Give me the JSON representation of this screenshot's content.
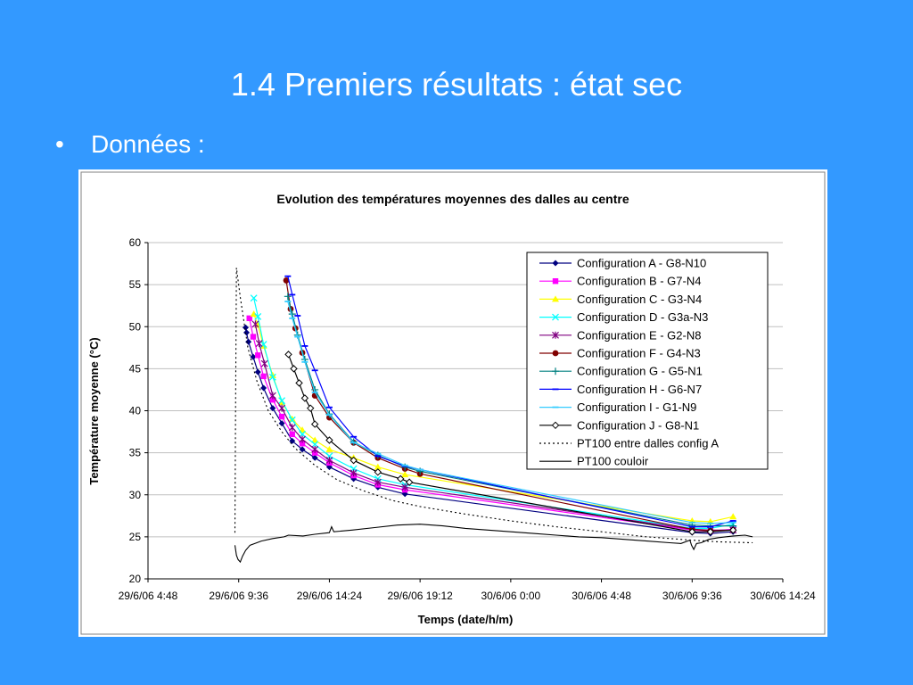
{
  "slide": {
    "title": "1.4 Premiers résultats : état sec",
    "bullet_symbol": "•",
    "bullet_text": "Données :"
  },
  "chart_data": {
    "type": "line",
    "title": "Evolution des températures moyennes des dalles au centre",
    "xlabel": "Temps (date/h/m)",
    "ylabel": "Température moyenne (°C)",
    "x_is_datetime": true,
    "xlim": [
      "2006-06-29 04:48",
      "2006-06-30 14:24"
    ],
    "x_ticks": [
      {
        "value": "2006-06-29 04:48",
        "label": "29/6/06 4:48"
      },
      {
        "value": "2006-06-29 09:36",
        "label": "29/6/06 9:36"
      },
      {
        "value": "2006-06-29 14:24",
        "label": "29/6/06 14:24"
      },
      {
        "value": "2006-06-29 19:12",
        "label": "29/6/06 19:12"
      },
      {
        "value": "2006-06-30 00:00",
        "label": "30/6/06 0:00"
      },
      {
        "value": "2006-06-30 04:48",
        "label": "30/6/06 4:48"
      },
      {
        "value": "2006-06-30 09:36",
        "label": "30/6/06 9:36"
      },
      {
        "value": "2006-06-30 14:24",
        "label": "30/6/06 14:24"
      }
    ],
    "ylim": [
      20,
      60
    ],
    "y_ticks": [
      20,
      25,
      30,
      35,
      40,
      45,
      50,
      55,
      60
    ],
    "grid": "horizontal",
    "legend_position": "top-right",
    "series": [
      {
        "name": "Configuration A - G8-N10",
        "color": "#000080",
        "marker": "diamond",
        "points": [
          [
            "2006-06-29 09:58",
            49.9
          ],
          [
            "2006-06-29 10:01",
            49.3
          ],
          [
            "2006-06-29 10:07",
            48.2
          ],
          [
            "2006-06-29 10:22",
            46.4
          ],
          [
            "2006-06-29 10:37",
            44.6
          ],
          [
            "2006-06-29 10:55",
            42.7
          ],
          [
            "2006-06-29 11:24",
            40.3
          ],
          [
            "2006-06-29 11:53",
            38.5
          ],
          [
            "2006-06-29 12:26",
            36.4
          ],
          [
            "2006-06-29 12:58",
            35.4
          ],
          [
            "2006-06-29 13:38",
            34.4
          ],
          [
            "2006-06-29 14:24",
            33.3
          ],
          [
            "2006-06-29 15:41",
            31.9
          ],
          [
            "2006-06-29 16:58",
            30.9
          ],
          [
            "2006-06-29 18:24",
            30.1
          ],
          [
            "2006-06-30 09:36",
            25.5
          ],
          [
            "2006-06-30 10:34",
            25.4
          ],
          [
            "2006-06-30 11:46",
            25.6
          ]
        ]
      },
      {
        "name": "Configuration B - G7-N4",
        "color": "#ff00ff",
        "marker": "square",
        "points": [
          [
            "2006-06-29 10:10",
            51.0
          ],
          [
            "2006-06-29 10:22",
            48.8
          ],
          [
            "2006-06-29 10:37",
            46.6
          ],
          [
            "2006-06-29 10:55",
            44.1
          ],
          [
            "2006-06-29 11:24",
            41.3
          ],
          [
            "2006-06-29 11:53",
            39.3
          ],
          [
            "2006-06-29 12:26",
            37.2
          ],
          [
            "2006-06-29 12:58",
            36.1
          ],
          [
            "2006-06-29 13:38",
            35.0
          ],
          [
            "2006-06-29 14:24",
            33.8
          ],
          [
            "2006-06-29 15:41",
            32.3
          ],
          [
            "2006-06-29 16:58",
            31.2
          ],
          [
            "2006-06-29 18:24",
            30.6
          ],
          [
            "2006-06-30 09:36",
            25.8
          ],
          [
            "2006-06-30 10:34",
            25.7
          ],
          [
            "2006-06-30 11:46",
            25.9
          ]
        ]
      },
      {
        "name": "Configuration C - G3-N4",
        "color": "#ffff00",
        "marker": "triangle",
        "points": [
          [
            "2006-06-29 10:24",
            51.5
          ],
          [
            "2006-06-29 10:37",
            50.2
          ],
          [
            "2006-06-29 10:55",
            47.7
          ],
          [
            "2006-06-29 11:24",
            44.2
          ],
          [
            "2006-06-29 11:53",
            41.0
          ],
          [
            "2006-06-29 12:26",
            39.0
          ],
          [
            "2006-06-29 12:58",
            37.7
          ],
          [
            "2006-06-29 13:38",
            36.5
          ],
          [
            "2006-06-29 14:24",
            35.4
          ],
          [
            "2006-06-29 15:41",
            34.4
          ],
          [
            "2006-06-29 16:58",
            33.3
          ],
          [
            "2006-06-29 18:24",
            32.4
          ],
          [
            "2006-06-30 09:36",
            26.9
          ],
          [
            "2006-06-30 10:34",
            26.8
          ],
          [
            "2006-06-30 11:46",
            27.4
          ]
        ]
      },
      {
        "name": "Configuration D - G3a-N3",
        "color": "#00ffff",
        "marker": "x",
        "points": [
          [
            "2006-06-29 10:24",
            53.4
          ],
          [
            "2006-06-29 10:37",
            51.2
          ],
          [
            "2006-06-29 10:55",
            47.9
          ],
          [
            "2006-06-29 11:24",
            44.0
          ],
          [
            "2006-06-29 11:53",
            41.2
          ],
          [
            "2006-06-29 12:26",
            38.9
          ],
          [
            "2006-06-29 12:58",
            37.2
          ],
          [
            "2006-06-29 13:38",
            36.0
          ],
          [
            "2006-06-29 14:24",
            34.6
          ],
          [
            "2006-06-29 15:41",
            33.1
          ],
          [
            "2006-06-29 16:58",
            31.9
          ],
          [
            "2006-06-29 18:24",
            31.2
          ],
          [
            "2006-06-30 09:36",
            26.0
          ],
          [
            "2006-06-30 10:34",
            26.0
          ],
          [
            "2006-06-30 11:46",
            26.5
          ]
        ]
      },
      {
        "name": "Configuration E - G2-N8",
        "color": "#800080",
        "marker": "star",
        "points": [
          [
            "2006-06-29 10:29",
            50.3
          ],
          [
            "2006-06-29 10:41",
            48.0
          ],
          [
            "2006-06-29 10:58",
            45.6
          ],
          [
            "2006-06-29 11:24",
            41.8
          ],
          [
            "2006-06-29 11:53",
            40.3
          ],
          [
            "2006-06-29 12:26",
            38.0
          ],
          [
            "2006-06-29 12:58",
            36.6
          ],
          [
            "2006-06-29 13:38",
            35.4
          ],
          [
            "2006-06-29 14:24",
            34.1
          ],
          [
            "2006-06-29 15:41",
            32.6
          ],
          [
            "2006-06-29 16:58",
            31.5
          ],
          [
            "2006-06-29 18:24",
            30.9
          ],
          [
            "2006-06-30 09:36",
            25.9
          ],
          [
            "2006-06-30 10:34",
            25.8
          ],
          [
            "2006-06-30 11:46",
            25.8
          ]
        ]
      },
      {
        "name": "Configuration F - G4-N3",
        "color": "#800000",
        "marker": "circle",
        "points": [
          [
            "2006-06-29 12:07",
            55.5
          ],
          [
            "2006-06-29 12:21",
            52.1
          ],
          [
            "2006-06-29 12:36",
            49.8
          ],
          [
            "2006-06-29 12:58",
            46.9
          ],
          [
            "2006-06-29 13:38",
            41.8
          ],
          [
            "2006-06-29 14:24",
            39.2
          ],
          [
            "2006-06-29 15:41",
            36.2
          ],
          [
            "2006-06-29 16:58",
            34.4
          ],
          [
            "2006-06-29 18:24",
            33.1
          ],
          [
            "2006-06-29 19:12",
            32.5
          ],
          [
            "2006-06-30 09:36",
            25.9
          ],
          [
            "2006-06-30 10:34",
            25.7
          ],
          [
            "2006-06-30 11:46",
            25.8
          ]
        ]
      },
      {
        "name": "Configuration G - G5-N1",
        "color": "#008080",
        "marker": "plus",
        "points": [
          [
            "2006-06-29 12:12",
            53.6
          ],
          [
            "2006-06-29 12:26",
            51.5
          ],
          [
            "2006-06-29 12:43",
            49.0
          ],
          [
            "2006-06-29 13:06",
            46.1
          ],
          [
            "2006-06-29 13:38",
            42.5
          ],
          [
            "2006-06-29 14:24",
            39.6
          ],
          [
            "2006-06-29 15:41",
            36.3
          ],
          [
            "2006-06-29 16:58",
            34.7
          ],
          [
            "2006-06-29 18:24",
            33.3
          ],
          [
            "2006-06-29 19:12",
            32.8
          ],
          [
            "2006-06-30 09:36",
            26.4
          ],
          [
            "2006-06-30 10:34",
            26.3
          ],
          [
            "2006-06-30 11:46",
            26.3
          ]
        ]
      },
      {
        "name": "Configuration H - G6-N7",
        "color": "#0000ff",
        "marker": "dash",
        "points": [
          [
            "2006-06-29 12:12",
            56.0
          ],
          [
            "2006-06-29 12:26",
            53.8
          ],
          [
            "2006-06-29 12:43",
            51.3
          ],
          [
            "2006-06-29 13:06",
            47.7
          ],
          [
            "2006-06-29 13:38",
            44.8
          ],
          [
            "2006-06-29 14:24",
            40.4
          ],
          [
            "2006-06-29 15:41",
            36.9
          ],
          [
            "2006-06-29 16:58",
            34.6
          ],
          [
            "2006-06-29 18:24",
            33.4
          ],
          [
            "2006-06-29 19:12",
            33.0
          ],
          [
            "2006-06-30 09:36",
            26.2
          ],
          [
            "2006-06-30 10:34",
            26.2
          ],
          [
            "2006-06-30 11:46",
            26.9
          ]
        ]
      },
      {
        "name": "Configuration I - G1-N9",
        "color": "#33ccff",
        "marker": "dash",
        "points": [
          [
            "2006-06-29 12:12",
            53.0
          ],
          [
            "2006-06-29 12:26",
            51.0
          ],
          [
            "2006-06-29 12:43",
            48.8
          ],
          [
            "2006-06-29 13:06",
            45.8
          ],
          [
            "2006-06-29 13:38",
            42.2
          ],
          [
            "2006-06-29 14:24",
            39.5
          ],
          [
            "2006-06-29 15:41",
            36.2
          ],
          [
            "2006-06-29 16:58",
            34.9
          ],
          [
            "2006-06-29 18:24",
            33.5
          ],
          [
            "2006-06-29 19:12",
            33.0
          ],
          [
            "2006-06-30 09:36",
            26.7
          ],
          [
            "2006-06-30 10:34",
            26.6
          ],
          [
            "2006-06-30 11:46",
            26.7
          ]
        ]
      },
      {
        "name": "Configuration J - G8-N1",
        "color": "#000000",
        "marker": "open-diamond",
        "points": [
          [
            "2006-06-29 12:14",
            46.7
          ],
          [
            "2006-06-29 12:31",
            45.0
          ],
          [
            "2006-06-29 12:48",
            43.3
          ],
          [
            "2006-06-29 13:06",
            41.5
          ],
          [
            "2006-06-29 13:24",
            40.3
          ],
          [
            "2006-06-29 13:38",
            38.4
          ],
          [
            "2006-06-29 14:24",
            36.5
          ],
          [
            "2006-06-29 15:41",
            34.1
          ],
          [
            "2006-06-29 16:58",
            32.7
          ],
          [
            "2006-06-29 18:10",
            31.9
          ],
          [
            "2006-06-29 18:38",
            31.5
          ],
          [
            "2006-06-30 09:36",
            25.6
          ],
          [
            "2006-06-30 10:34",
            25.6
          ],
          [
            "2006-06-30 11:46",
            25.8
          ]
        ]
      },
      {
        "name": "PT100 entre dalles config A",
        "color": "#000000",
        "marker": "none",
        "line_style": "dotted",
        "points": [
          [
            "2006-06-29 09:24",
            25.5
          ],
          [
            "2006-06-29 09:26",
            40.0
          ],
          [
            "2006-06-29 09:29",
            57.0
          ],
          [
            "2006-06-29 09:41",
            53.5
          ],
          [
            "2006-06-29 10:05",
            47.5
          ],
          [
            "2006-06-29 10:34",
            43.5
          ],
          [
            "2006-06-29 11:10",
            40.0
          ],
          [
            "2006-06-29 11:53",
            37.5
          ],
          [
            "2006-06-29 12:36",
            35.5
          ],
          [
            "2006-06-29 13:38",
            33.5
          ],
          [
            "2006-06-29 14:48",
            31.8
          ],
          [
            "2006-06-29 16:10",
            30.5
          ],
          [
            "2006-06-29 17:46",
            29.3
          ],
          [
            "2006-06-29 19:12",
            28.6
          ],
          [
            "2006-06-29 21:36",
            27.7
          ],
          [
            "2006-06-30 00:00",
            26.9
          ],
          [
            "2006-06-30 02:24",
            26.2
          ],
          [
            "2006-06-30 04:48",
            25.6
          ],
          [
            "2006-06-30 07:12",
            25.0
          ],
          [
            "2006-06-30 09:36",
            24.6
          ],
          [
            "2006-06-30 11:00",
            24.4
          ],
          [
            "2006-06-30 12:48",
            24.3
          ]
        ]
      },
      {
        "name": "PT100 couloir",
        "color": "#000000",
        "marker": "none",
        "line_style": "solid",
        "points": [
          [
            "2006-06-29 09:24",
            24.0
          ],
          [
            "2006-06-29 09:29",
            22.8
          ],
          [
            "2006-06-29 09:34",
            22.3
          ],
          [
            "2006-06-29 09:41",
            22.0
          ],
          [
            "2006-06-29 09:48",
            22.7
          ],
          [
            "2006-06-29 09:58",
            23.4
          ],
          [
            "2006-06-29 10:12",
            24.0
          ],
          [
            "2006-06-29 10:48",
            24.5
          ],
          [
            "2006-06-29 11:24",
            24.8
          ],
          [
            "2006-06-29 12:00",
            25.0
          ],
          [
            "2006-06-29 12:14",
            25.2
          ],
          [
            "2006-06-29 13:00",
            25.1
          ],
          [
            "2006-06-29 13:38",
            25.3
          ],
          [
            "2006-06-29 14:24",
            25.5
          ],
          [
            "2006-06-29 14:31",
            26.2
          ],
          [
            "2006-06-29 14:38",
            25.6
          ],
          [
            "2006-06-29 15:36",
            25.8
          ],
          [
            "2006-06-29 16:48",
            26.1
          ],
          [
            "2006-06-29 18:00",
            26.4
          ],
          [
            "2006-06-29 19:12",
            26.5
          ],
          [
            "2006-06-29 20:24",
            26.3
          ],
          [
            "2006-06-29 21:36",
            26.0
          ],
          [
            "2006-06-29 22:48",
            25.8
          ],
          [
            "2006-06-30 00:00",
            25.6
          ],
          [
            "2006-06-30 01:12",
            25.4
          ],
          [
            "2006-06-30 02:24",
            25.2
          ],
          [
            "2006-06-30 03:36",
            25.0
          ],
          [
            "2006-06-30 04:48",
            24.9
          ],
          [
            "2006-06-30 06:00",
            24.7
          ],
          [
            "2006-06-30 07:12",
            24.5
          ],
          [
            "2006-06-30 08:24",
            24.3
          ],
          [
            "2006-06-30 09:00",
            24.2
          ],
          [
            "2006-06-30 09:29",
            24.6
          ],
          [
            "2006-06-30 09:34",
            24.0
          ],
          [
            "2006-06-30 09:41",
            23.5
          ],
          [
            "2006-06-30 09:50",
            24.2
          ],
          [
            "2006-06-30 10:05",
            24.3
          ],
          [
            "2006-06-30 10:29",
            24.7
          ],
          [
            "2006-06-30 11:00",
            24.9
          ],
          [
            "2006-06-30 11:46",
            25.1
          ],
          [
            "2006-06-30 12:24",
            25.2
          ],
          [
            "2006-06-30 12:48",
            25.0
          ]
        ]
      }
    ]
  }
}
